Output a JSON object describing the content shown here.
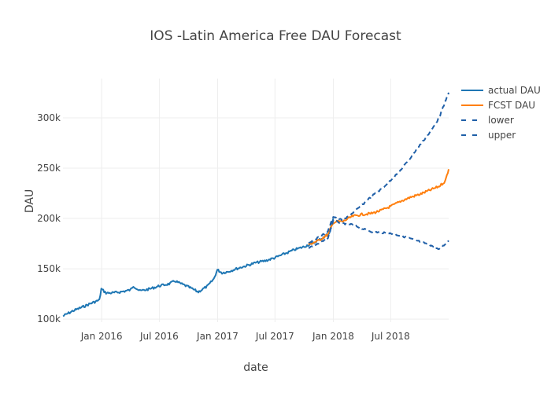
{
  "chart_data": {
    "type": "line",
    "title": "IOS -Latin America Free DAU Forecast",
    "xlabel": "date",
    "ylabel": "DAU",
    "xlim": [
      "2015-09-01",
      "2018-12-31"
    ],
    "ylim": [
      97000,
      339000
    ],
    "grid": true,
    "legend_placement": "top-right",
    "x_ticks": [
      {
        "date": "2016-01-01",
        "label": "Jan 2016"
      },
      {
        "date": "2016-07-01",
        "label": "Jul 2016"
      },
      {
        "date": "2017-01-01",
        "label": "Jan 2017"
      },
      {
        "date": "2017-07-01",
        "label": "Jul 2017"
      },
      {
        "date": "2018-01-01",
        "label": "Jan 2018"
      },
      {
        "date": "2018-07-01",
        "label": "Jul 2018"
      }
    ],
    "y_ticks": [
      {
        "value": 100000,
        "label": "100k"
      },
      {
        "value": 150000,
        "label": "150k"
      },
      {
        "value": 200000,
        "label": "200k"
      },
      {
        "value": 250000,
        "label": "250k"
      },
      {
        "value": 300000,
        "label": "300k"
      }
    ],
    "series": [
      {
        "name": "actual DAU",
        "color": "#1f77b4",
        "dash": "solid",
        "x": [
          "2015-09-01",
          "2015-10-01",
          "2015-11-01",
          "2015-12-01",
          "2015-12-25",
          "2015-12-31",
          "2016-01-15",
          "2016-02-01",
          "2016-03-01",
          "2016-04-01",
          "2016-04-10",
          "2016-05-01",
          "2016-06-01",
          "2016-07-01",
          "2016-08-01",
          "2016-08-20",
          "2016-09-01",
          "2016-10-01",
          "2016-11-01",
          "2016-12-01",
          "2016-12-20",
          "2016-12-31",
          "2017-01-15",
          "2017-02-01",
          "2017-03-01",
          "2017-04-01",
          "2017-05-01",
          "2017-06-01",
          "2017-07-01",
          "2017-08-01",
          "2017-09-01",
          "2017-10-01",
          "2017-11-01",
          "2017-12-01",
          "2017-12-20",
          "2018-01-01"
        ],
        "y": [
          103000,
          108000,
          112000,
          116000,
          119000,
          130000,
          126000,
          126000,
          127000,
          129000,
          133000,
          128000,
          130000,
          133000,
          135000,
          138000,
          136000,
          132000,
          127000,
          133000,
          140000,
          149000,
          146000,
          147000,
          150000,
          153000,
          156000,
          158000,
          161000,
          165000,
          169000,
          172000,
          176000,
          181000,
          186000,
          200000
        ]
      },
      {
        "name": "FCST DAU",
        "color": "#ff7f0e",
        "dash": "solid",
        "x": [
          "2017-10-15",
          "2017-11-15",
          "2017-12-15",
          "2018-01-01",
          "2018-01-15",
          "2018-02-01",
          "2018-03-01",
          "2018-04-01",
          "2018-05-01",
          "2018-06-01",
          "2018-07-01",
          "2018-08-01",
          "2018-09-01",
          "2018-10-01",
          "2018-11-01",
          "2018-12-01",
          "2018-12-20",
          "2018-12-31"
        ],
        "y": [
          174000,
          178000,
          184000,
          196000,
          197000,
          197000,
          202000,
          204000,
          205000,
          208000,
          212000,
          217000,
          221000,
          224000,
          228000,
          232000,
          237000,
          249000
        ]
      },
      {
        "name": "lower",
        "color": "#1f5fa8",
        "dash": "dash",
        "x": [
          "2017-10-15",
          "2017-11-15",
          "2017-12-15",
          "2018-01-01",
          "2018-02-01",
          "2018-03-01",
          "2018-04-01",
          "2018-05-01",
          "2018-06-01",
          "2018-07-01",
          "2018-08-01",
          "2018-09-01",
          "2018-10-01",
          "2018-11-01",
          "2018-12-01",
          "2018-12-31"
        ],
        "y": [
          171000,
          175000,
          180000,
          198000,
          195000,
          194000,
          190000,
          187000,
          186000,
          185000,
          183000,
          180000,
          177000,
          174000,
          169000,
          178000
        ]
      },
      {
        "name": "upper",
        "color": "#1f5fa8",
        "dash": "dash",
        "x": [
          "2017-10-15",
          "2017-11-15",
          "2017-12-15",
          "2018-01-01",
          "2018-02-01",
          "2018-03-01",
          "2018-04-01",
          "2018-05-01",
          "2018-06-01",
          "2018-07-01",
          "2018-08-01",
          "2018-09-01",
          "2018-10-01",
          "2018-11-01",
          "2018-12-01",
          "2018-12-31"
        ],
        "y": [
          176000,
          181000,
          187000,
          202000,
          198000,
          205000,
          213000,
          222000,
          229000,
          238000,
          248000,
          260000,
          273000,
          285000,
          300000,
          325000
        ]
      }
    ]
  }
}
